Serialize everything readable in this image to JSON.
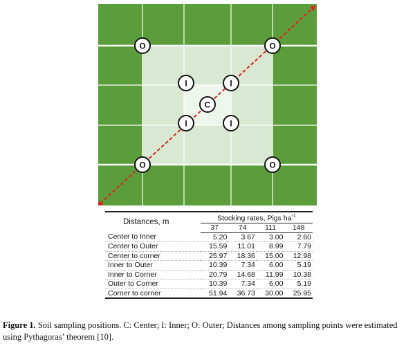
{
  "diagram": {
    "marker_labels": {
      "outer": "O",
      "inner": "I",
      "center": "C"
    },
    "colors": {
      "outer_band": "#5b9d3a",
      "inner_band": "#d9e8d2",
      "center_band": "#eef5ea",
      "grid_lines": "#ffffff",
      "diagonal": "#e02020"
    }
  },
  "table": {
    "header": {
      "main": "Distances, m",
      "group": "Stocking rates, Pigs ha",
      "group_superscript": "-1",
      "rates": [
        "37",
        "74",
        "111",
        "148"
      ]
    },
    "rows": [
      {
        "label": "Center to Inner",
        "values": [
          "5.20",
          "3.67",
          "3.00",
          "2.60"
        ]
      },
      {
        "label": "Center to Outer",
        "values": [
          "15.59",
          "11.01",
          "8.99",
          "7.79"
        ]
      },
      {
        "label": "Center to corner",
        "values": [
          "25.97",
          "18.36",
          "15.00",
          "12.98"
        ]
      },
      {
        "label": "Inner to Outer",
        "values": [
          "10.39",
          "7.34",
          "6.00",
          "5.19"
        ]
      },
      {
        "label": "Inner to Corner",
        "values": [
          "20.79",
          "14.68",
          "11.99",
          "10.38"
        ]
      },
      {
        "label": "Outer to Corner",
        "values": [
          "10.39",
          "7.34",
          "6.00",
          "5.19"
        ]
      },
      {
        "label": "Corner to corner",
        "values": [
          "51.94",
          "36.73",
          "30.00",
          "25.95"
        ]
      }
    ]
  },
  "caption": {
    "label": "Figure 1.",
    "text": " Soil sampling positions. C: Center; I: Inner; O: Outer; Distances among sampling points were estimated using Pythagoras’ theorem [10]."
  }
}
